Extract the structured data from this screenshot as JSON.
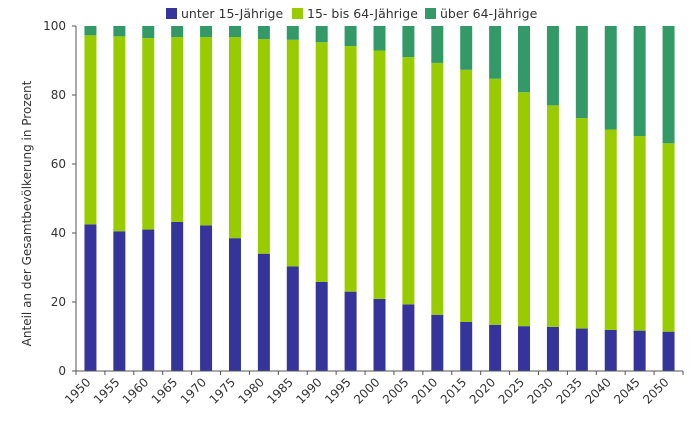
{
  "chart_data": {
    "type": "bar",
    "stacked": true,
    "title": "",
    "xlabel": "",
    "ylabel": "Anteil an der Gesamtbevölkerung in Prozent",
    "ylim": [
      0,
      100
    ],
    "yticks": [
      0,
      20,
      40,
      60,
      80,
      100
    ],
    "grid": false,
    "legend_position": "top",
    "categories": [
      "1950",
      "1955",
      "1960",
      "1965",
      "1970",
      "1975",
      "1980",
      "1985",
      "1990",
      "1995",
      "2000",
      "2005",
      "2010",
      "2015",
      "2020",
      "2025",
      "2030",
      "2035",
      "2040",
      "2045",
      "2050"
    ],
    "series": [
      {
        "name": "unter 15-Jährige",
        "color": "#35349a",
        "values": [
          42.5,
          40.5,
          41.0,
          43.2,
          42.2,
          38.5,
          34.0,
          30.3,
          25.8,
          23.0,
          20.9,
          19.3,
          16.3,
          14.2,
          13.4,
          13.0,
          12.8,
          12.3,
          11.9,
          11.7,
          11.4
        ]
      },
      {
        "name": "15- bis 64-Jährige",
        "color": "#99cc00",
        "values": [
          54.8,
          56.5,
          55.5,
          53.6,
          54.6,
          58.3,
          62.2,
          65.7,
          69.5,
          71.2,
          72.0,
          71.7,
          73.0,
          73.1,
          71.3,
          67.8,
          64.2,
          61.0,
          58.1,
          56.4,
          54.6
        ]
      },
      {
        "name": "über 64-Jährige",
        "color": "#339966",
        "values": [
          2.7,
          3.0,
          3.5,
          3.2,
          3.2,
          3.2,
          3.8,
          4.0,
          4.7,
          5.8,
          7.1,
          9.0,
          10.7,
          12.7,
          15.3,
          19.2,
          23.0,
          26.7,
          30.0,
          31.9,
          34.0
        ]
      }
    ]
  }
}
